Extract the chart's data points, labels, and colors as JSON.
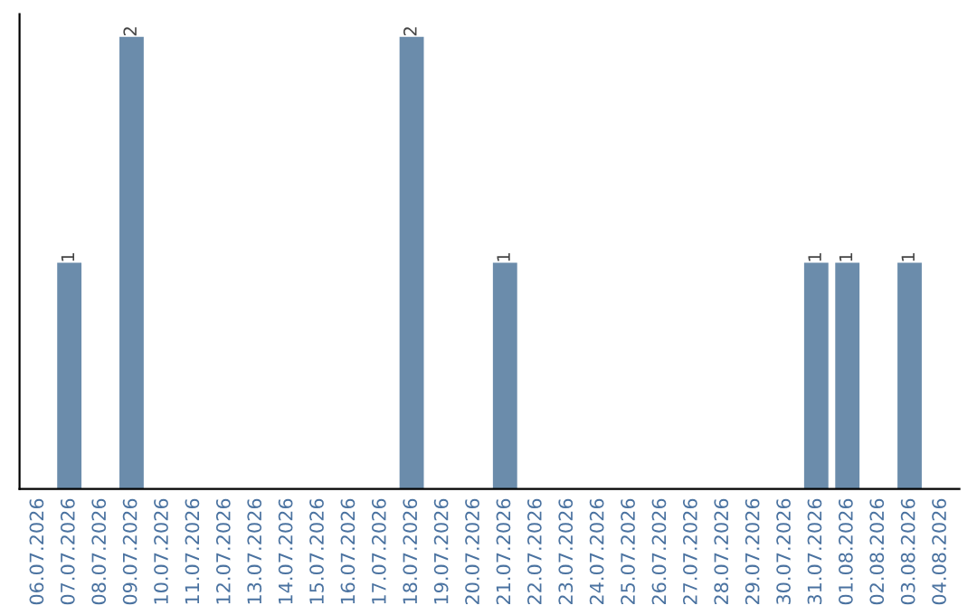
{
  "chart_data": {
    "type": "bar",
    "categories": [
      "06.07.2026",
      "07.07.2026",
      "08.07.2026",
      "09.07.2026",
      "10.07.2026",
      "11.07.2026",
      "12.07.2026",
      "13.07.2026",
      "14.07.2026",
      "15.07.2026",
      "16.07.2026",
      "17.07.2026",
      "18.07.2026",
      "19.07.2026",
      "20.07.2026",
      "21.07.2026",
      "22.07.2026",
      "23.07.2026",
      "24.07.2026",
      "25.07.2026",
      "26.07.2026",
      "27.07.2026",
      "28.07.2026",
      "29.07.2026",
      "30.07.2026",
      "31.07.2026",
      "01.08.2026",
      "02.08.2026",
      "03.08.2026",
      "04.08.2026"
    ],
    "values": [
      0,
      1,
      0,
      2,
      0,
      0,
      0,
      0,
      0,
      0,
      0,
      0,
      2,
      0,
      0,
      1,
      0,
      0,
      0,
      0,
      0,
      0,
      0,
      0,
      0,
      1,
      1,
      0,
      1,
      0
    ],
    "value_labels": [
      null,
      "1",
      null,
      "2",
      null,
      null,
      null,
      null,
      null,
      null,
      null,
      null,
      "2",
      null,
      null,
      "1",
      null,
      null,
      null,
      null,
      null,
      null,
      null,
      null,
      null,
      "1",
      "1",
      null,
      "1",
      null
    ],
    "color": "#6b8cab",
    "tick_labels": "x",
    "grid": false
  }
}
